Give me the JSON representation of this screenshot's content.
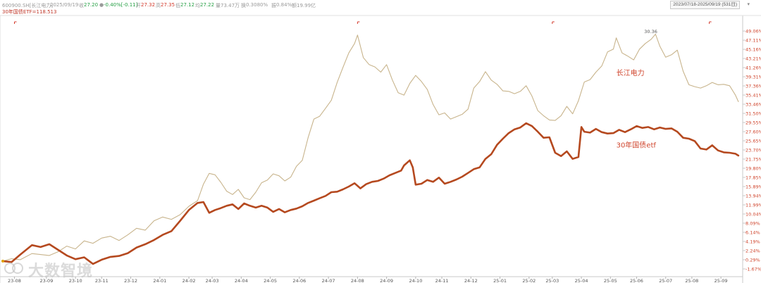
{
  "topbar": {
    "code": "600900.SH[长江电力]",
    "date": "2025/09/19",
    "close_label": "收",
    "close": "27.20",
    "change": "-0.40%[-0.11]",
    "open_label": "开",
    "open": "27.32",
    "high_label": "高",
    "high": "27.35",
    "low_label": "低",
    "low": "27.12",
    "avg_label": "均",
    "avg": "27.22",
    "vol_label": "量",
    "vol": "73.47万",
    "turn_label": "换",
    "turn": "0.3080%",
    "amp_label": "振",
    "amp": "0.84%",
    "amt_label": "额",
    "amt": "19.99亿",
    "range": "2023/07/18-2025/09/19 (531日)",
    "range_arrow": "▾"
  },
  "legend": {
    "etf": "30年国债ETF=118.513"
  },
  "watermark": "大数智境",
  "colors": {
    "stock": "#c8b48c",
    "etf": "#b5491f",
    "axis_text": "#d0462e",
    "grid": "#e9e9e9"
  },
  "chart_data": {
    "type": "line",
    "title": "",
    "xlabel": "",
    "ylabel": "",
    "ylim": [
      -1.67,
      50.88
    ],
    "y_ticks": [
      "49.06%",
      "47.11%",
      "45.16%",
      "43.21%",
      "41.26%",
      "39.31%",
      "37.36%",
      "35.41%",
      "33.46%",
      "31.50%",
      "29.55%",
      "27.60%",
      "25.65%",
      "23.70%",
      "21.75%",
      "19.80%",
      "17.85%",
      "15.89%",
      "13.94%",
      "11.99%",
      "10.04%",
      "8.09%",
      "6.14%",
      "4.19%",
      "2.24%",
      "0.29%",
      "-1.67%"
    ],
    "y_tick_values": [
      49.06,
      47.11,
      45.16,
      43.21,
      41.26,
      39.31,
      37.36,
      35.41,
      33.46,
      31.5,
      29.55,
      27.6,
      25.65,
      23.7,
      21.75,
      19.8,
      17.85,
      15.89,
      13.94,
      11.99,
      10.04,
      8.09,
      6.14,
      4.19,
      2.24,
      0.29,
      -1.67
    ],
    "x_ticks": [
      {
        "label": "23-08",
        "t": 0.4
      },
      {
        "label": "23-09",
        "t": 1.5
      },
      {
        "label": "23-10",
        "t": 2.5
      },
      {
        "label": "23-11",
        "t": 3.4
      },
      {
        "label": "23-12",
        "t": 4.4
      },
      {
        "label": "24-01",
        "t": 5.4
      },
      {
        "label": "24-02",
        "t": 6.4
      },
      {
        "label": "24-03",
        "t": 7.2
      },
      {
        "label": "24-04",
        "t": 8.2
      },
      {
        "label": "24-05",
        "t": 9.2
      },
      {
        "label": "24-06",
        "t": 10.2
      },
      {
        "label": "24-07",
        "t": 11.2
      },
      {
        "label": "24-08",
        "t": 12.2
      },
      {
        "label": "24-09",
        "t": 13.2
      },
      {
        "label": "24-10",
        "t": 14.2
      },
      {
        "label": "24-11",
        "t": 15.1
      },
      {
        "label": "24-12",
        "t": 16.1
      },
      {
        "label": "25-01",
        "t": 17.1
      },
      {
        "label": "25-02",
        "t": 18.1
      },
      {
        "label": "25-03",
        "t": 18.9
      },
      {
        "label": "25-04",
        "t": 19.9
      },
      {
        "label": "25-05",
        "t": 20.9
      },
      {
        "label": "25-06",
        "t": 21.8
      },
      {
        "label": "25-07",
        "t": 22.8
      },
      {
        "label": "25-08",
        "t": 23.7
      },
      {
        "label": "25-09",
        "t": 24.7
      }
    ],
    "annotations": [
      {
        "text": "30.36",
        "t": 22.45,
        "y": 49.06
      },
      {
        "text": "长江电力",
        "t": 21.1,
        "y": 39.6
      },
      {
        "text": "30年国债etf",
        "t": 21.1,
        "y": 24.2
      }
    ],
    "series": [
      {
        "name": "长江电力",
        "points": [
          [
            0,
            0
          ],
          [
            0.3,
            0.5
          ],
          [
            0.6,
            0.3
          ],
          [
            1.0,
            1.6
          ],
          [
            1.3,
            1.4
          ],
          [
            1.6,
            1.2
          ],
          [
            1.9,
            2.0
          ],
          [
            2.2,
            3.2
          ],
          [
            2.5,
            2.6
          ],
          [
            2.8,
            4.3
          ],
          [
            3.1,
            3.8
          ],
          [
            3.4,
            4.9
          ],
          [
            3.7,
            5.3
          ],
          [
            4.0,
            4.4
          ],
          [
            4.3,
            5.6
          ],
          [
            4.6,
            7.0
          ],
          [
            4.9,
            6.6
          ],
          [
            5.2,
            8.6
          ],
          [
            5.5,
            9.4
          ],
          [
            5.8,
            8.9
          ],
          [
            6.1,
            9.9
          ],
          [
            6.4,
            11.7
          ],
          [
            6.7,
            12.9
          ],
          [
            6.9,
            16.4
          ],
          [
            7.1,
            18.7
          ],
          [
            7.3,
            18.4
          ],
          [
            7.5,
            16.8
          ],
          [
            7.7,
            14.9
          ],
          [
            7.9,
            14.2
          ],
          [
            8.1,
            15.3
          ],
          [
            8.3,
            13.5
          ],
          [
            8.5,
            13.1
          ],
          [
            8.7,
            14.7
          ],
          [
            8.9,
            16.7
          ],
          [
            9.1,
            17.3
          ],
          [
            9.3,
            18.6
          ],
          [
            9.5,
            18.2
          ],
          [
            9.7,
            17.1
          ],
          [
            9.9,
            17.9
          ],
          [
            10.1,
            20.2
          ],
          [
            10.3,
            21.5
          ],
          [
            10.5,
            26.3
          ],
          [
            10.7,
            30.3
          ],
          [
            10.9,
            30.9
          ],
          [
            11.1,
            32.6
          ],
          [
            11.3,
            34.3
          ],
          [
            11.5,
            38.1
          ],
          [
            11.7,
            41.3
          ],
          [
            11.9,
            44.4
          ],
          [
            12.1,
            46.4
          ],
          [
            12.2,
            48.2
          ],
          [
            12.4,
            43.4
          ],
          [
            12.6,
            41.9
          ],
          [
            12.8,
            41.4
          ],
          [
            13.0,
            40.3
          ],
          [
            13.2,
            41.9
          ],
          [
            13.4,
            38.6
          ],
          [
            13.6,
            35.9
          ],
          [
            13.8,
            35.4
          ],
          [
            14.0,
            37.9
          ],
          [
            14.2,
            39.6
          ],
          [
            14.4,
            38.3
          ],
          [
            14.6,
            36.6
          ],
          [
            14.8,
            33.4
          ],
          [
            15.0,
            31.2
          ],
          [
            15.2,
            31.6
          ],
          [
            15.4,
            30.3
          ],
          [
            15.6,
            30.8
          ],
          [
            15.8,
            31.3
          ],
          [
            16.0,
            32.4
          ],
          [
            16.2,
            36.9
          ],
          [
            16.4,
            38.3
          ],
          [
            16.6,
            40.4
          ],
          [
            16.8,
            38.6
          ],
          [
            17.0,
            37.7
          ],
          [
            17.2,
            36.3
          ],
          [
            17.4,
            36.2
          ],
          [
            17.6,
            35.7
          ],
          [
            17.8,
            36.2
          ],
          [
            18.0,
            37.4
          ],
          [
            18.2,
            35.2
          ],
          [
            18.4,
            32.1
          ],
          [
            18.6,
            31.0
          ],
          [
            18.8,
            30.1
          ],
          [
            19.0,
            30.0
          ],
          [
            19.2,
            31.0
          ],
          [
            19.4,
            33.0
          ],
          [
            19.6,
            31.4
          ],
          [
            19.8,
            34.2
          ],
          [
            20.0,
            38.2
          ],
          [
            20.2,
            38.7
          ],
          [
            20.4,
            40.3
          ],
          [
            20.6,
            41.6
          ],
          [
            20.8,
            44.6
          ],
          [
            21.0,
            45.2
          ],
          [
            21.1,
            47.6
          ],
          [
            21.3,
            44.4
          ],
          [
            21.5,
            43.7
          ],
          [
            21.7,
            42.9
          ],
          [
            21.9,
            45.2
          ],
          [
            22.1,
            46.4
          ],
          [
            22.3,
            47.3
          ],
          [
            22.45,
            48.4
          ],
          [
            22.6,
            45.8
          ],
          [
            22.8,
            43.5
          ],
          [
            23.0,
            44.0
          ],
          [
            23.2,
            45.0
          ],
          [
            23.4,
            40.5
          ],
          [
            23.6,
            37.6
          ],
          [
            23.8,
            37.2
          ],
          [
            24.0,
            36.9
          ],
          [
            24.2,
            37.4
          ],
          [
            24.4,
            38.1
          ],
          [
            24.6,
            37.6
          ],
          [
            24.8,
            37.7
          ],
          [
            25.0,
            37.4
          ],
          [
            25.2,
            35.4
          ],
          [
            25.3,
            34.0
          ]
        ]
      },
      {
        "name": "30年国债ETF",
        "points": [
          [
            0,
            0
          ],
          [
            0.3,
            -0.2
          ],
          [
            0.6,
            1.4
          ],
          [
            1.0,
            3.4
          ],
          [
            1.3,
            3.0
          ],
          [
            1.6,
            3.6
          ],
          [
            1.9,
            2.4
          ],
          [
            2.2,
            1.2
          ],
          [
            2.5,
            0.4
          ],
          [
            2.8,
            0.8
          ],
          [
            3.1,
            -0.6
          ],
          [
            3.4,
            0.3
          ],
          [
            3.7,
            0.9
          ],
          [
            4.0,
            1.1
          ],
          [
            4.3,
            1.7
          ],
          [
            4.6,
            2.9
          ],
          [
            4.9,
            3.6
          ],
          [
            5.2,
            4.5
          ],
          [
            5.5,
            5.6
          ],
          [
            5.8,
            6.4
          ],
          [
            6.1,
            8.6
          ],
          [
            6.4,
            10.9
          ],
          [
            6.7,
            12.4
          ],
          [
            6.9,
            12.6
          ],
          [
            7.1,
            10.3
          ],
          [
            7.3,
            10.9
          ],
          [
            7.5,
            11.3
          ],
          [
            7.7,
            11.8
          ],
          [
            7.9,
            12.1
          ],
          [
            8.1,
            11.1
          ],
          [
            8.3,
            12.3
          ],
          [
            8.5,
            11.8
          ],
          [
            8.7,
            11.4
          ],
          [
            8.9,
            11.8
          ],
          [
            9.1,
            11.4
          ],
          [
            9.3,
            10.5
          ],
          [
            9.5,
            11.1
          ],
          [
            9.7,
            10.4
          ],
          [
            9.9,
            10.9
          ],
          [
            10.1,
            11.2
          ],
          [
            10.3,
            11.7
          ],
          [
            10.5,
            12.4
          ],
          [
            10.7,
            12.9
          ],
          [
            10.9,
            13.4
          ],
          [
            11.1,
            13.9
          ],
          [
            11.3,
            14.7
          ],
          [
            11.5,
            14.8
          ],
          [
            11.7,
            15.3
          ],
          [
            11.9,
            15.9
          ],
          [
            12.1,
            16.6
          ],
          [
            12.3,
            15.5
          ],
          [
            12.5,
            16.4
          ],
          [
            12.7,
            16.9
          ],
          [
            12.9,
            17.1
          ],
          [
            13.1,
            17.6
          ],
          [
            13.3,
            18.3
          ],
          [
            13.5,
            18.8
          ],
          [
            13.7,
            19.3
          ],
          [
            13.8,
            20.4
          ],
          [
            14.0,
            21.5
          ],
          [
            14.1,
            20.0
          ],
          [
            14.2,
            16.3
          ],
          [
            14.4,
            16.5
          ],
          [
            14.6,
            17.3
          ],
          [
            14.8,
            16.9
          ],
          [
            15.0,
            17.8
          ],
          [
            15.2,
            16.5
          ],
          [
            15.4,
            16.9
          ],
          [
            15.6,
            17.4
          ],
          [
            15.8,
            18.0
          ],
          [
            16.0,
            18.8
          ],
          [
            16.2,
            19.6
          ],
          [
            16.4,
            20.0
          ],
          [
            16.6,
            21.8
          ],
          [
            16.8,
            22.8
          ],
          [
            17.0,
            24.8
          ],
          [
            17.2,
            26.1
          ],
          [
            17.4,
            27.3
          ],
          [
            17.6,
            28.1
          ],
          [
            17.8,
            28.5
          ],
          [
            18.0,
            29.4
          ],
          [
            18.2,
            28.8
          ],
          [
            18.4,
            27.6
          ],
          [
            18.6,
            26.3
          ],
          [
            18.8,
            26.4
          ],
          [
            19.0,
            23.1
          ],
          [
            19.2,
            22.4
          ],
          [
            19.4,
            23.4
          ],
          [
            19.6,
            21.8
          ],
          [
            19.8,
            22.2
          ],
          [
            19.9,
            28.6
          ],
          [
            20.0,
            27.6
          ],
          [
            20.2,
            27.4
          ],
          [
            20.4,
            28.2
          ],
          [
            20.6,
            27.5
          ],
          [
            20.8,
            27.2
          ],
          [
            21.0,
            27.3
          ],
          [
            21.2,
            28.0
          ],
          [
            21.4,
            27.5
          ],
          [
            21.6,
            28.1
          ],
          [
            21.8,
            28.8
          ],
          [
            22.0,
            28.4
          ],
          [
            22.2,
            28.6
          ],
          [
            22.4,
            28.1
          ],
          [
            22.6,
            28.5
          ],
          [
            22.8,
            28.2
          ],
          [
            23.0,
            28.3
          ],
          [
            23.2,
            27.6
          ],
          [
            23.4,
            26.3
          ],
          [
            23.6,
            26.1
          ],
          [
            23.8,
            25.6
          ],
          [
            24.0,
            24.0
          ],
          [
            24.2,
            23.8
          ],
          [
            24.4,
            24.7
          ],
          [
            24.6,
            23.6
          ],
          [
            24.8,
            23.2
          ],
          [
            25.0,
            23.1
          ],
          [
            25.2,
            22.9
          ],
          [
            25.3,
            22.5
          ]
        ]
      }
    ]
  }
}
